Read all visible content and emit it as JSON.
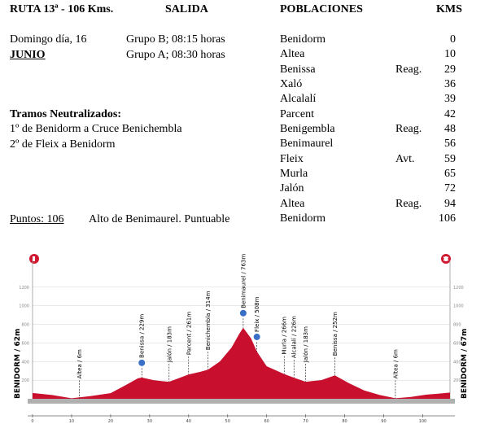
{
  "header": {
    "route": "RUTA 13ª - 106 Kms.",
    "salida": "SALIDA",
    "poblaciones": "POBLACIONES",
    "kms": "KMS"
  },
  "salida": {
    "day": "Domingo día, 16",
    "month": "JUNIO",
    "groups": [
      "Grupo B; 08:15 horas",
      "Grupo A; 08:30 horas"
    ]
  },
  "tramos": {
    "title": "Tramos Neutralizados:",
    "items": [
      "1º de Benidorm a Cruce Benichembla",
      "2º de Fleix a Benidorm"
    ]
  },
  "puntos": {
    "label": "Puntos:  106",
    "text": "Alto de Benimaurel.  Puntuable"
  },
  "poblaciones": [
    {
      "name": "Benidorm",
      "km": 0
    },
    {
      "name": "Altea",
      "km": 10
    },
    {
      "name": "Benissa",
      "note": "Reag.",
      "km": 29
    },
    {
      "name": "Xaló",
      "km": 36
    },
    {
      "name": "Alcalalí",
      "km": 39
    },
    {
      "name": "Parcent",
      "km": 42
    },
    {
      "name": "Benigembla",
      "note": "Reag.",
      "km": 48
    },
    {
      "name": "Benimaurel",
      "km": 56
    },
    {
      "name": "Fleix",
      "note": "Avt.",
      "km": 59
    },
    {
      "name": "Murla",
      "km": 65
    },
    {
      "name": "Jalón",
      "km": 72
    },
    {
      "name": "Altea",
      "note": "Reag.",
      "km": 94
    },
    {
      "name": "Benidorm",
      "km": 106
    }
  ],
  "profile": {
    "type": "area",
    "color": "#c8102e",
    "x": [
      0,
      5,
      10,
      15,
      20,
      24,
      27,
      28,
      31,
      33,
      35,
      38,
      40,
      43,
      45,
      48,
      51,
      53,
      54,
      56,
      57.5,
      60,
      64.5,
      67,
      70,
      74,
      77.5,
      81,
      85,
      89,
      93,
      97,
      101,
      104,
      107
    ],
    "values": [
      62,
      40,
      6,
      30,
      60,
      150,
      220,
      229,
      200,
      190,
      183,
      230,
      261,
      290,
      314,
      400,
      550,
      700,
      763,
      650,
      508,
      350,
      266,
      226,
      183,
      200,
      252,
      170,
      90,
      40,
      6,
      20,
      45,
      55,
      67
    ],
    "xlim": [
      0,
      107
    ],
    "ylim": [
      0,
      1400
    ],
    "xticks": [
      0,
      10,
      20,
      30,
      40,
      50,
      60,
      70,
      80,
      90,
      100
    ],
    "yticks": [
      200,
      400,
      600,
      800,
      1000,
      1200
    ],
    "start_label": "BENIDORM / 62m",
    "finish_label": "BENIDORM / 67m",
    "markers": [
      {
        "label": "Altea / 6m",
        "km": 12,
        "elevation": 6
      },
      {
        "label": "Benissa / 229m",
        "km": 28,
        "elevation": 229
      },
      {
        "label": "Jalón / 183m",
        "km": 35,
        "elevation": 183
      },
      {
        "label": "Parcent / 261m",
        "km": 40,
        "elevation": 261
      },
      {
        "label": "Benichembla / 314m",
        "km": 45,
        "elevation": 314
      },
      {
        "label": "Benimaurel / 763m",
        "km": 54,
        "elevation": 763
      },
      {
        "label": "Fleix / 508m",
        "km": 57.5,
        "elevation": 508
      },
      {
        "label": "Murla / 266m",
        "km": 64.5,
        "elevation": 266
      },
      {
        "label": "Alcalalí / 226m",
        "km": 67,
        "elevation": 226
      },
      {
        "label": "Jalón / 183m",
        "km": 70,
        "elevation": 183
      },
      {
        "label": "Benissa / 252m",
        "km": 77.5,
        "elevation": 252
      },
      {
        "label": "Altea / 6m",
        "km": 93,
        "elevation": 6
      }
    ]
  }
}
